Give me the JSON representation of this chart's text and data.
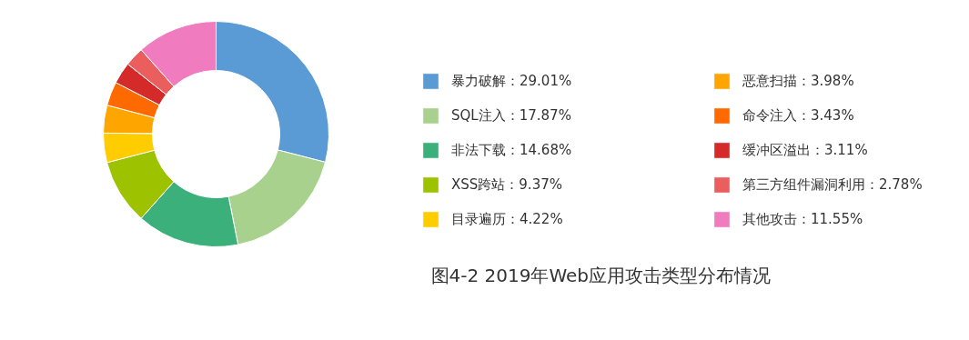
{
  "chart_data": {
    "type": "donut",
    "title": "图4-2  2019年Web应用攻击类型分布情况",
    "categories": [
      "暴力破解：29.01%",
      "SQL注入：17.87%",
      "非法下载：14.68%",
      "XSS跨站：9.37%",
      "目录遍历：4.22%",
      "恶意扫描：3.98%",
      "命令注入：3.43%",
      "缓冲区溢出：3.11%",
      "第三方组件漏洞利用：2.78%",
      "其他攻击：11.55%"
    ],
    "values": [
      29.01,
      17.87,
      14.68,
      9.37,
      4.22,
      3.98,
      3.43,
      3.11,
      2.78,
      11.55
    ],
    "colors": [
      "#5b9bd5",
      "#a9d18e",
      "#3cb07a",
      "#9dc300",
      "#ffcc00",
      "#ffa500",
      "#ff6a00",
      "#d42a2a",
      "#eb5e5e",
      "#f07bbf"
    ],
    "legend": "right"
  }
}
